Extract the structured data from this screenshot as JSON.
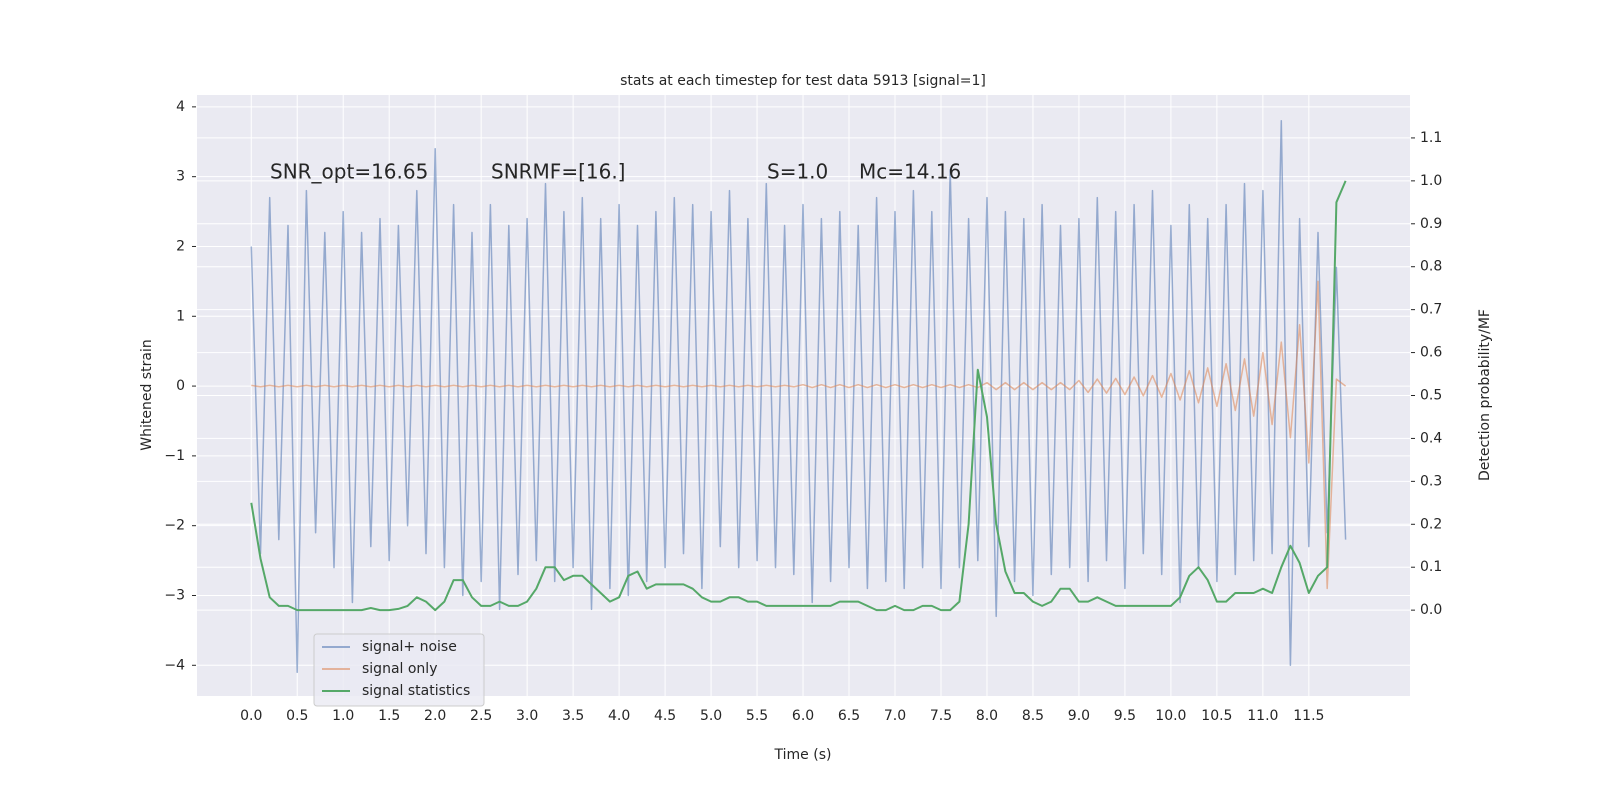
{
  "chart_data": {
    "type": "line",
    "title": "stats at each timestep for test data 5913 [signal=1]",
    "x_label": "Time (s)",
    "y_label": "Whitened strain",
    "y2_label": "Detection probability/MF",
    "annotations": [
      "SNR_opt=16.65",
      "SNRMF=[16.]",
      "S=1.0",
      "Mc=14.16"
    ],
    "x": [
      0.0,
      0.1,
      0.2,
      0.3,
      0.4,
      0.5,
      0.6,
      0.7,
      0.8,
      0.9,
      1.0,
      1.1,
      1.2,
      1.3,
      1.4,
      1.5,
      1.6,
      1.7,
      1.8,
      1.9,
      2.0,
      2.1,
      2.2,
      2.3,
      2.4,
      2.5,
      2.6,
      2.7,
      2.8,
      2.9,
      3.0,
      3.1,
      3.2,
      3.3,
      3.4,
      3.5,
      3.6,
      3.7,
      3.8,
      3.9,
      4.0,
      4.1,
      4.2,
      4.3,
      4.4,
      4.5,
      4.6,
      4.7,
      4.8,
      4.9,
      5.0,
      5.1,
      5.2,
      5.3,
      5.4,
      5.5,
      5.6,
      5.7,
      5.8,
      5.9,
      6.0,
      6.1,
      6.2,
      6.3,
      6.4,
      6.5,
      6.6,
      6.7,
      6.8,
      6.9,
      7.0,
      7.1,
      7.2,
      7.3,
      7.4,
      7.5,
      7.6,
      7.7,
      7.8,
      7.9,
      8.0,
      8.1,
      8.2,
      8.3,
      8.4,
      8.5,
      8.6,
      8.7,
      8.8,
      8.9,
      9.0,
      9.1,
      9.2,
      9.3,
      9.4,
      9.5,
      9.6,
      9.7,
      9.8,
      9.9,
      10.0,
      10.1,
      10.2,
      10.3,
      10.4,
      10.5,
      10.6,
      10.7,
      10.8,
      10.9,
      11.0,
      11.1,
      11.2,
      11.3,
      11.4,
      11.5,
      11.6,
      11.7,
      11.8,
      11.9
    ],
    "series": [
      {
        "name": "signal+ noise",
        "color": "#4c72b0",
        "values": [
          2.0,
          -2.4,
          2.7,
          -2.2,
          2.3,
          -4.1,
          2.8,
          -2.1,
          2.2,
          -2.6,
          2.5,
          -3.1,
          2.2,
          -2.3,
          2.4,
          -2.5,
          2.3,
          -2.0,
          2.8,
          -2.4,
          3.4,
          -2.6,
          2.6,
          -3.0,
          2.2,
          -2.8,
          2.6,
          -3.2,
          2.3,
          -2.7,
          2.4,
          -2.5,
          2.9,
          -2.8,
          2.5,
          -2.6,
          2.7,
          -3.2,
          2.4,
          -2.9,
          2.6,
          -3.0,
          2.3,
          -2.8,
          2.5,
          -2.6,
          2.7,
          -2.4,
          2.6,
          -2.9,
          2.5,
          -2.3,
          2.8,
          -2.6,
          2.4,
          -2.5,
          2.9,
          -2.6,
          2.3,
          -2.7,
          2.6,
          -3.1,
          2.4,
          -2.8,
          2.5,
          -2.6,
          2.3,
          -2.9,
          2.7,
          -2.8,
          2.5,
          -2.9,
          2.8,
          -2.6,
          2.5,
          -2.9,
          3.1,
          -2.6,
          2.4,
          -2.5,
          2.7,
          -3.3,
          2.5,
          -2.8,
          2.4,
          -3.0,
          2.6,
          -2.7,
          2.3,
          -2.6,
          2.4,
          -2.8,
          2.7,
          -2.5,
          2.5,
          -2.9,
          2.6,
          -2.4,
          2.8,
          -2.7,
          2.3,
          -3.1,
          2.6,
          -2.6,
          2.4,
          -2.8,
          2.6,
          -2.7,
          2.9,
          -2.5,
          2.8,
          -2.4,
          3.8,
          -4.0,
          2.4,
          -2.3,
          2.2,
          -2.1,
          1.7,
          -2.2
        ]
      },
      {
        "name": "signal only",
        "color": "#dd8452",
        "values": [
          0.01,
          -0.01,
          0.01,
          -0.01,
          0.01,
          -0.01,
          0.01,
          -0.01,
          0.01,
          -0.01,
          0.01,
          -0.01,
          0.01,
          -0.01,
          0.01,
          -0.01,
          0.01,
          -0.01,
          0.01,
          -0.01,
          0.01,
          -0.01,
          0.01,
          -0.01,
          0.01,
          -0.01,
          0.01,
          -0.01,
          0.01,
          -0.01,
          0.01,
          -0.01,
          0.01,
          -0.01,
          0.01,
          -0.01,
          0.01,
          -0.01,
          0.01,
          -0.01,
          0.01,
          -0.01,
          0.01,
          -0.01,
          0.01,
          -0.01,
          0.01,
          -0.01,
          0.01,
          -0.01,
          0.01,
          -0.01,
          0.01,
          -0.01,
          0.01,
          -0.01,
          0.01,
          -0.01,
          0.01,
          -0.01,
          0.02,
          -0.02,
          0.02,
          -0.02,
          0.02,
          -0.02,
          0.02,
          -0.02,
          0.02,
          -0.02,
          0.02,
          -0.02,
          0.02,
          -0.02,
          0.02,
          -0.02,
          0.02,
          -0.02,
          0.02,
          -0.02,
          0.05,
          -0.05,
          0.05,
          -0.05,
          0.05,
          -0.05,
          0.05,
          -0.05,
          0.05,
          -0.05,
          0.08,
          -0.09,
          0.1,
          -0.1,
          0.11,
          -0.12,
          0.13,
          -0.14,
          0.15,
          -0.16,
          0.18,
          -0.2,
          0.22,
          -0.24,
          0.26,
          -0.29,
          0.32,
          -0.35,
          0.39,
          -0.43,
          0.48,
          -0.55,
          0.63,
          -0.74,
          0.88,
          -1.1,
          1.5,
          -2.9,
          0.1,
          0.0
        ]
      },
      {
        "name": "signal statistics",
        "color": "#55a868",
        "axis": "y2",
        "values": [
          0.25,
          0.12,
          0.03,
          0.01,
          0.01,
          0.0,
          0.0,
          0.0,
          0.0,
          0.0,
          0.0,
          0.0,
          0.0,
          0.005,
          0.0,
          0.0,
          0.003,
          0.01,
          0.03,
          0.02,
          0.0,
          0.02,
          0.07,
          0.07,
          0.03,
          0.01,
          0.01,
          0.02,
          0.01,
          0.01,
          0.02,
          0.05,
          0.1,
          0.1,
          0.07,
          0.08,
          0.08,
          0.06,
          0.04,
          0.02,
          0.03,
          0.08,
          0.09,
          0.05,
          0.06,
          0.06,
          0.06,
          0.06,
          0.05,
          0.03,
          0.02,
          0.02,
          0.03,
          0.03,
          0.02,
          0.02,
          0.01,
          0.01,
          0.01,
          0.01,
          0.01,
          0.01,
          0.01,
          0.01,
          0.02,
          0.02,
          0.02,
          0.01,
          0.0,
          0.0,
          0.01,
          0.0,
          0.0,
          0.01,
          0.01,
          0.0,
          0.0,
          0.02,
          0.2,
          0.56,
          0.45,
          0.2,
          0.09,
          0.04,
          0.04,
          0.02,
          0.01,
          0.02,
          0.05,
          0.05,
          0.02,
          0.02,
          0.03,
          0.02,
          0.01,
          0.01,
          0.01,
          0.01,
          0.01,
          0.01,
          0.01,
          0.03,
          0.08,
          0.1,
          0.07,
          0.02,
          0.02,
          0.04,
          0.04,
          0.04,
          0.05,
          0.04,
          0.1,
          0.15,
          0.11,
          0.04,
          0.08,
          0.1,
          0.95,
          1.0
        ]
      }
    ],
    "xlim": [
      -0.59,
      12.6
    ],
    "ylim": [
      -4.44,
      4.17
    ],
    "y2lim": [
      -0.2,
      1.2
    ],
    "xticks": [
      {
        "value": 0,
        "label": "0.0"
      },
      0.5,
      {
        "value": 1,
        "label": "1.0"
      },
      1.5,
      {
        "value": 2,
        "label": "2.0"
      },
      2.5,
      {
        "value": 3,
        "label": "3.0"
      },
      3.5,
      {
        "value": 4,
        "label": "4.0"
      },
      4.5,
      {
        "value": 5,
        "label": "5.0"
      },
      5.5,
      {
        "value": 6,
        "label": "6.0"
      },
      6.5,
      {
        "value": 7,
        "label": "7.0"
      },
      7.5,
      {
        "value": 8,
        "label": "8.0"
      },
      8.5,
      {
        "value": 9,
        "label": "9.0"
      },
      9.5,
      {
        "value": 10,
        "label": "10.0"
      },
      10.5,
      {
        "value": 11,
        "label": "11.0"
      },
      11.5
    ],
    "yticks": [
      {
        "value": -4,
        "label": "−4"
      },
      {
        "value": -3,
        "label": "−3"
      },
      {
        "value": -2,
        "label": "−2"
      },
      {
        "value": -1,
        "label": "−1"
      },
      0,
      1,
      2,
      3,
      4
    ],
    "y2ticks": [
      {
        "value": 0,
        "label": "0.0"
      },
      0.1,
      0.2,
      0.3,
      0.4,
      0.5,
      0.6,
      0.7,
      0.8,
      0.9,
      {
        "value": 1,
        "label": "1.0"
      },
      1.1
    ],
    "grid": true,
    "legend": "lower left"
  }
}
